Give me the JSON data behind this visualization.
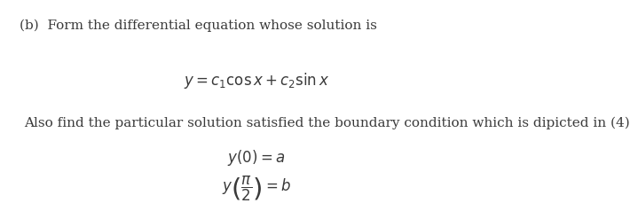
{
  "background_color": "#ffffff",
  "bold_label": "(b)  Form the differential equation whose solution is",
  "equation_main": "$y = c_1\\cos x + c_2\\sin x$",
  "text_also": "Also find the particular solution satisfied the boundary condition which is dipicted in (4)",
  "eq_bc1": "$y(0) = a$",
  "eq_bc2": "$y\\left(\\dfrac{\\pi}{2}\\right) = b$",
  "font_size_label": 11,
  "font_size_eq": 12,
  "font_size_text": 11,
  "font_size_bc": 12,
  "text_color": "#3a3a3a"
}
